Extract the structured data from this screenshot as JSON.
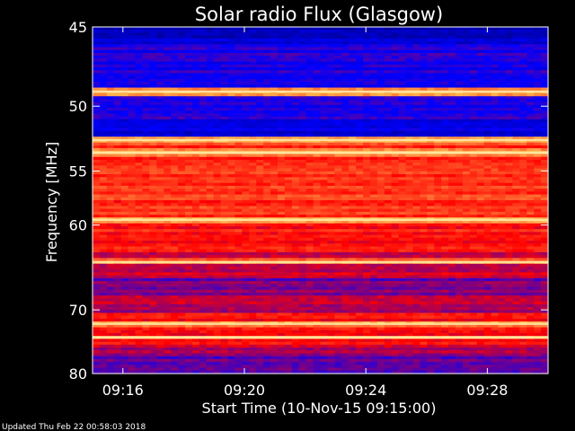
{
  "chart_data": {
    "type": "heatmap",
    "title": "Solar radio Flux (Glasgow)",
    "xlabel": "Start Time (10-Nov-15 09:15:00)",
    "ylabel": "Frequency [MHz]",
    "x_range": [
      "09:15:00",
      "09:30:00"
    ],
    "y_range": [
      45,
      80
    ],
    "x_ticks": [
      "09:16",
      "09:20",
      "09:24",
      "09:28"
    ],
    "y_ticks": [
      "45",
      "50",
      "55",
      "60",
      "70",
      "80"
    ],
    "y_scale": "reciprocal",
    "colormap": [
      "#000060",
      "#0000ff",
      "#ff0000",
      "#ffd060",
      "#ffffff"
    ],
    "bright_bands_mhz": [
      49,
      52.5,
      53.5,
      59.5,
      64,
      72,
      74
    ]
  },
  "footer": {
    "updated": "Updated Thu Feb 22 00:58:03 2018"
  }
}
